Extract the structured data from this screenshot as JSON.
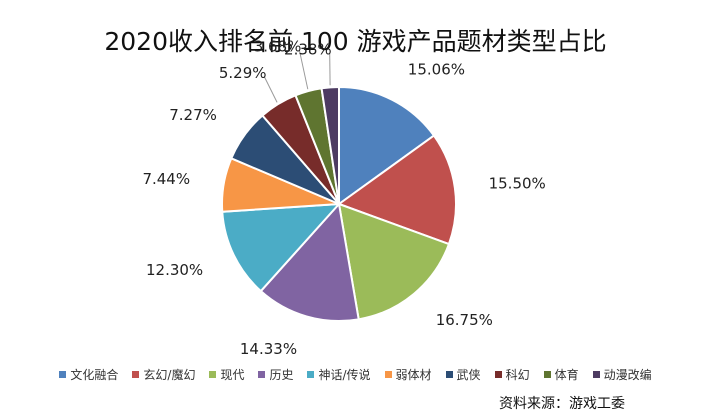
{
  "chart_data": {
    "type": "pie",
    "title": "2020收入排名前 100 游戏产品题材类型占比",
    "categories": [
      "文化融合",
      "玄幻/魔幻",
      "现代",
      "历史",
      "神话/传说",
      "弱体材",
      "武侠",
      "科幻",
      "体育",
      "动漫改编"
    ],
    "values": [
      15.06,
      15.5,
      16.75,
      14.33,
      12.3,
      7.44,
      7.27,
      5.29,
      3.68,
      2.38
    ],
    "value_labels": [
      "15.06%",
      "15.50%",
      "16.75%",
      "14.33%",
      "12.30%",
      "7.44%",
      "7.27%",
      "5.29%",
      "3.68%",
      "2.38%"
    ],
    "colors": [
      "#4F81BD",
      "#C0504D",
      "#9BBB59",
      "#8064A2",
      "#4BACC6",
      "#F79646",
      "#2C4D75",
      "#772C2A",
      "#5F7530",
      "#4D3B62"
    ],
    "legend_position": "bottom"
  },
  "source_note": "资料来源：游戏工委"
}
